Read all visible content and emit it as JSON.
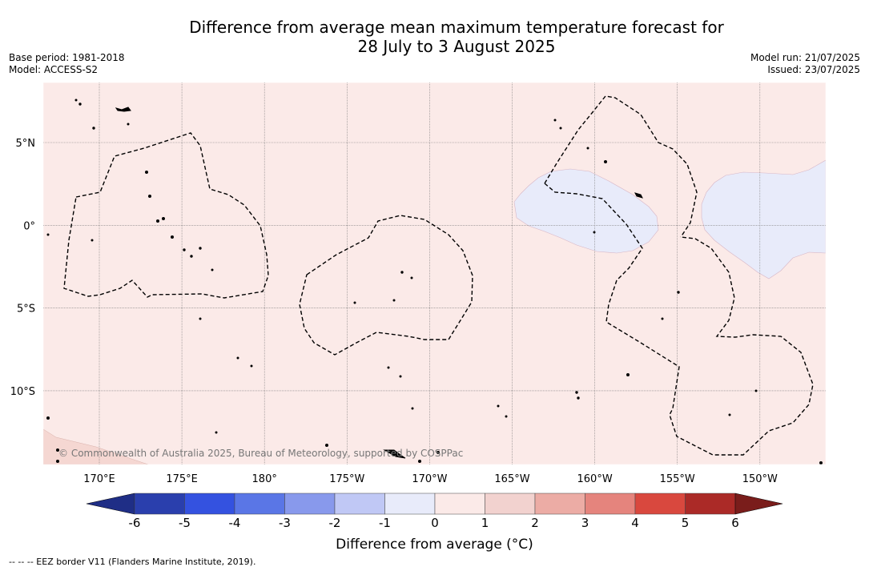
{
  "title_line1": "Difference from average mean maximum temperature forecast for",
  "title_line2": "28 July to 3 August 2025",
  "base_period": "Base period: 1981-2018",
  "model": "Model: ACCESS-S2",
  "model_run": "Model run: 21/07/2025",
  "issued": "Issued: 23/07/2025",
  "copyright": "© Commonwealth of Australia 2025, Bureau of Meteorology, supported by COSPPac",
  "colorbar_label": "Difference from average (°C)",
  "footnote": "-- -- -- EEZ border V11 (Flanders Marine Institute, 2019).",
  "map_data": {
    "lon_labels": [
      "170°E",
      "175°E",
      "180°",
      "175°W",
      "170°W",
      "165°W",
      "160°W",
      "155°W",
      "150°W"
    ],
    "lat_labels": [
      "5°N",
      "0°",
      "5°S",
      "10°S"
    ],
    "background_color": "#fbeae8",
    "cool_anomaly_color": "#e8ebfa",
    "warm_corner_color": "#f5d7d2"
  },
  "colorbar": {
    "ticks": [
      "-6",
      "-5",
      "-4",
      "-3",
      "-2",
      "-1",
      "0",
      "1",
      "2",
      "3",
      "4",
      "5",
      "6"
    ],
    "colors": [
      "#2a3fad",
      "#3452e0",
      "#5a76e6",
      "#8899ec",
      "#c0c8f5",
      "#e8ebfa",
      "#fbeae8",
      "#f2d2cf",
      "#ecaca5",
      "#e5847d",
      "#d9483e",
      "#ab2a27"
    ],
    "under_color": "#1f2e86",
    "over_color": "#7a1d1b"
  }
}
